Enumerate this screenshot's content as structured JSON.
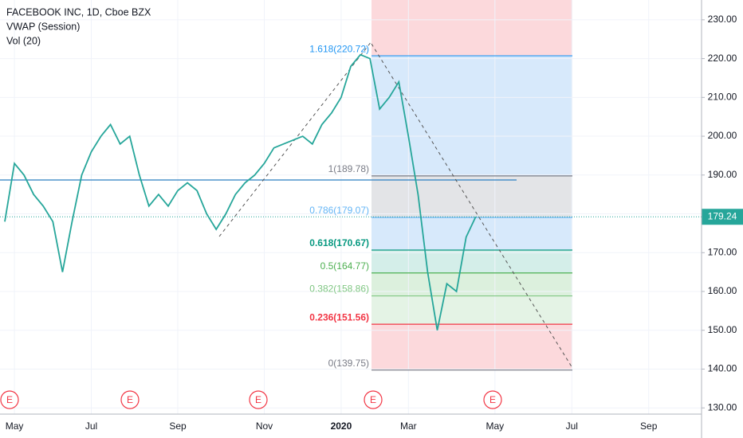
{
  "chart_data": {
    "type": "line",
    "title": "FACEBOOK INC, 1D, Cboe BZX",
    "indicators": [
      "VWAP (Session)",
      "Vol (20)"
    ],
    "categories": [
      null,
      "May",
      null,
      null,
      null,
      null,
      null,
      null,
      null,
      "Jul",
      null,
      null,
      null,
      null,
      null,
      null,
      null,
      null,
      "Sep",
      null,
      null,
      null,
      null,
      null,
      null,
      null,
      null,
      "Nov",
      null,
      null,
      null,
      null,
      null,
      null,
      null,
      "2020",
      null,
      null,
      null,
      null,
      null,
      null,
      "Mar",
      null,
      null,
      null,
      null,
      null,
      null,
      null,
      null,
      "May",
      null,
      null,
      null,
      null,
      null,
      null,
      null,
      "Jul",
      null,
      null,
      null,
      null,
      null,
      null,
      null,
      "Sep",
      null,
      null,
      null,
      null,
      null
    ],
    "series": [
      {
        "name": "FACEBOOK INC",
        "color": "#26a69a",
        "values": [
          178,
          193,
          190,
          185,
          182,
          178,
          165,
          178,
          190,
          196,
          200,
          203,
          198,
          200,
          190,
          182,
          185,
          182,
          186,
          188,
          186,
          180,
          176,
          180,
          185,
          188,
          190,
          193,
          197,
          198,
          199,
          200,
          198,
          203,
          206,
          210,
          218,
          221,
          220,
          207,
          210,
          214,
          200,
          185,
          165,
          150,
          162,
          160,
          174,
          179.24,
          null,
          null,
          null,
          null,
          null,
          null,
          null,
          null,
          null,
          null,
          null,
          null,
          null,
          null,
          null,
          null,
          null,
          null,
          null,
          null,
          null,
          null,
          null
        ]
      }
    ],
    "last_price": 179.24,
    "last_price_color": "#26a69a",
    "ylim": [
      128.4,
      235.1
    ],
    "yticks": [
      {
        "value": 130,
        "label": "130.00"
      },
      {
        "value": 140,
        "label": "140.00"
      },
      {
        "value": 150,
        "label": "150.00"
      },
      {
        "value": 160,
        "label": "160.00"
      },
      {
        "value": 170,
        "label": "170.00"
      },
      {
        "value": 180,
        "label": "180.00"
      },
      {
        "value": 190,
        "label": "190.00"
      },
      {
        "value": 200,
        "label": "200.00"
      },
      {
        "value": 210,
        "label": "210.00"
      },
      {
        "value": 220,
        "label": "220.00"
      },
      {
        "value": 230,
        "label": "230.00"
      }
    ],
    "grid": true,
    "fib_levels": [
      {
        "value": 220.72,
        "label": "1.618(220.72)",
        "color": "#2196f3",
        "zone_color": "#d7e9fb"
      },
      {
        "value": 189.78,
        "label": "1(189.78)",
        "color": "#787b86",
        "zone_color": "#e3e4e7"
      },
      {
        "value": 179.07,
        "label": "0.786(179.07)",
        "color": "#64b5f6",
        "zone_color": "#d7e9fb"
      },
      {
        "value": 170.67,
        "label": "0.618(170.67)",
        "color": "#089981",
        "zone_color": "#d4eee9"
      },
      {
        "value": 164.77,
        "label": "0.5(164.77)",
        "color": "#4caf50",
        "zone_color": "#dcf0dd"
      },
      {
        "value": 158.86,
        "label": "0.382(158.86)",
        "color": "#81c784",
        "zone_color": "#e4f3e5"
      },
      {
        "value": 151.56,
        "label": "0.236(151.56)",
        "color": "#f23645",
        "zone_color": "#fcd9dc"
      },
      {
        "value": 139.75,
        "label": "0(139.75)",
        "color": "#787b86",
        "zone_color": "#fcd9dc"
      }
    ],
    "earnings": [
      "E",
      "E",
      "E",
      "E",
      "E"
    ]
  }
}
